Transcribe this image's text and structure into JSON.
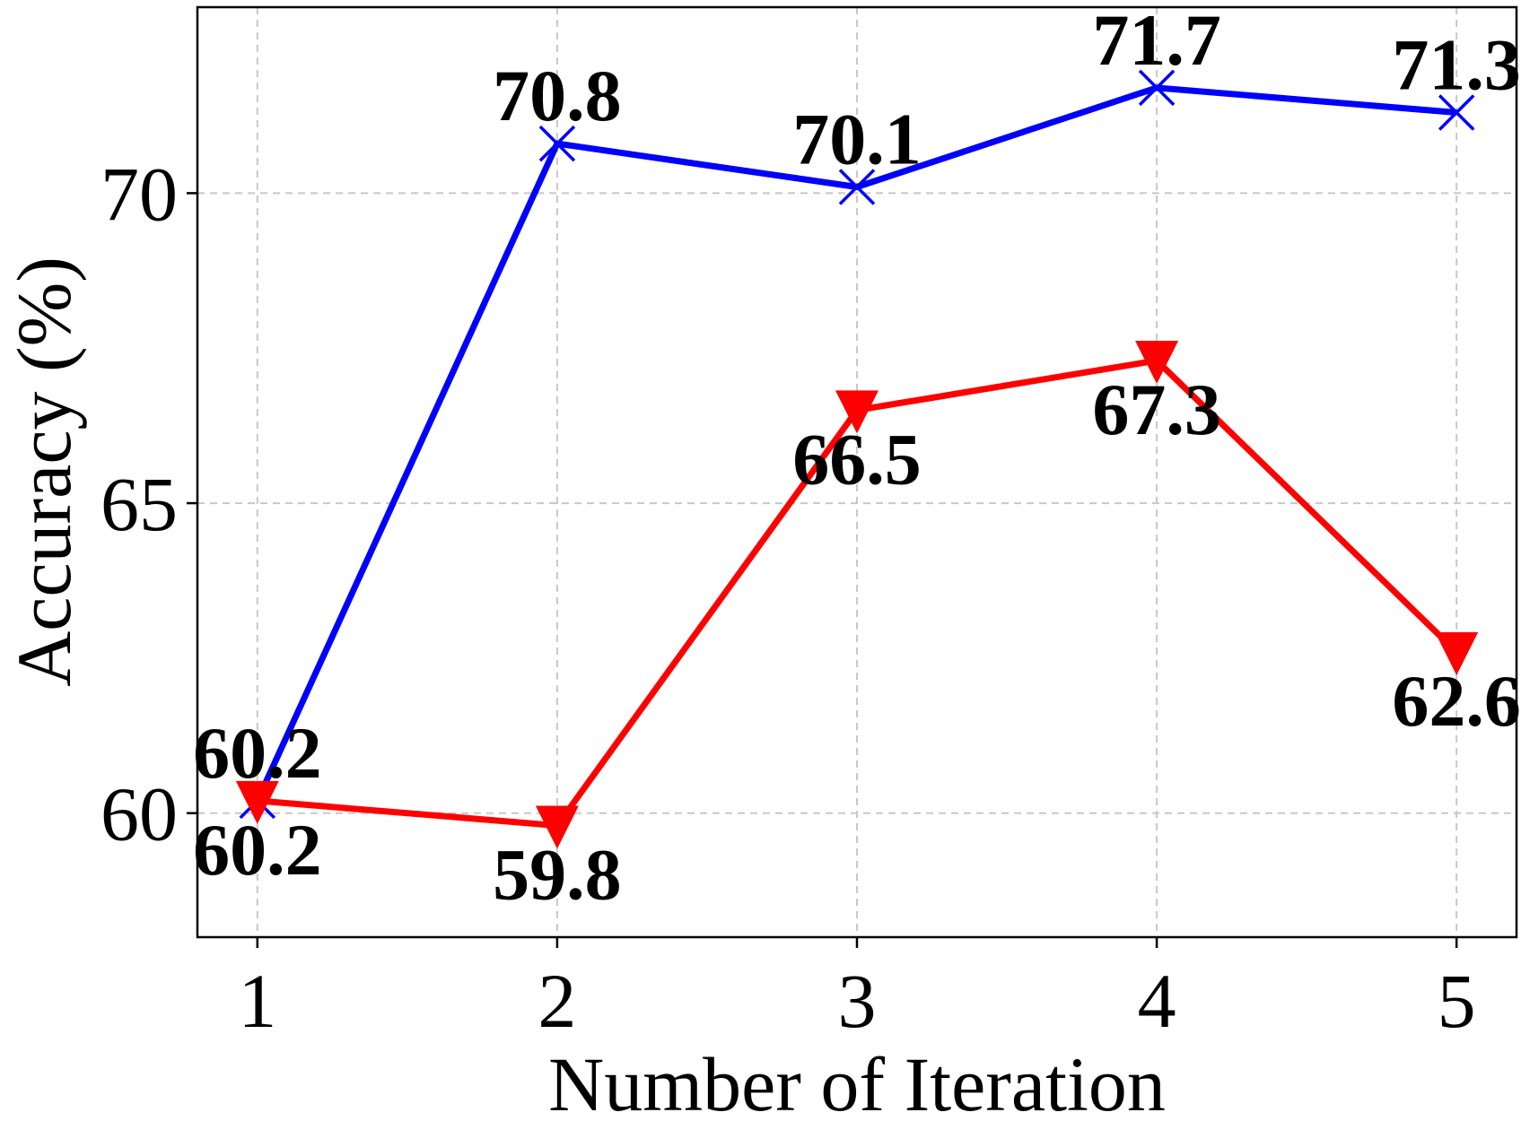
{
  "chart_data": {
    "type": "line",
    "xlabel": "Number of Iteration",
    "ylabel": "Accuracy (%)",
    "x": [
      1,
      2,
      3,
      4,
      5
    ],
    "xticks": [
      "1",
      "2",
      "3",
      "4",
      "5"
    ],
    "yticks": [
      "60",
      "65",
      "70"
    ],
    "xlim": [
      0.8,
      5.2
    ],
    "ylim": [
      58,
      73
    ],
    "grid": true,
    "series": [
      {
        "color": "#0000ff",
        "marker": "x",
        "values": [
          60.2,
          70.8,
          70.1,
          71.7,
          71.3
        ],
        "labels": [
          "60.2",
          "70.8",
          "70.1",
          "71.7",
          "71.3"
        ],
        "label_position": "above"
      },
      {
        "color": "#ff0000",
        "marker": "triangle-down",
        "values": [
          60.2,
          59.8,
          66.5,
          67.3,
          62.6
        ],
        "labels": [
          "60.2",
          "59.8",
          "66.5",
          "67.3",
          "62.6"
        ],
        "label_position": "below"
      }
    ]
  }
}
